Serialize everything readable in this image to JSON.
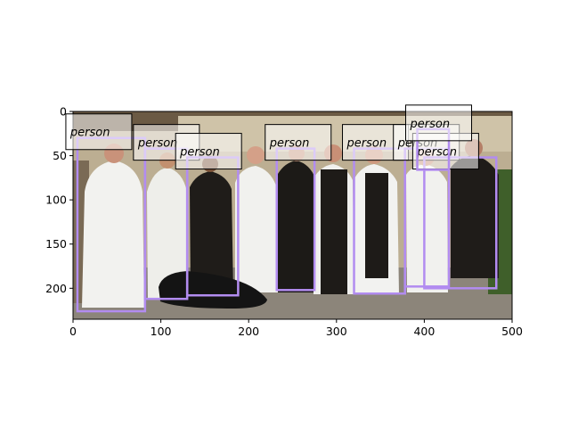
{
  "axes": {
    "x_ticks": [
      "0",
      "100",
      "200",
      "300",
      "400",
      "500"
    ],
    "x_tick_values": [
      0,
      100,
      200,
      300,
      400,
      500
    ],
    "y_ticks": [
      "0",
      "50",
      "100",
      "150",
      "200"
    ],
    "y_tick_values": [
      0,
      50,
      100,
      150,
      200
    ],
    "xlim": [
      0,
      500
    ],
    "ylim": [
      235,
      0
    ]
  },
  "image": {
    "description_colors": {
      "wall": "#bfb39a",
      "roof": "#5a4a3a",
      "ground": "#8a8378",
      "foliage": "#3f5f2a",
      "white_habit": "#f4f4f2",
      "black_habit": "#1e1b18",
      "skin": "#c99578"
    }
  },
  "detections": {
    "box_color": "#b28cf0",
    "items": [
      {
        "label": "person",
        "x0": 5,
        "y0": 30,
        "x1": 82,
        "y1": 226
      },
      {
        "label": "person",
        "x0": 82,
        "y0": 42,
        "x1": 130,
        "y1": 212
      },
      {
        "label": "person",
        "x0": 130,
        "y0": 52,
        "x1": 188,
        "y1": 208
      },
      {
        "label": "person",
        "x0": 232,
        "y0": 42,
        "x1": 275,
        "y1": 202
      },
      {
        "label": "person",
        "x0": 320,
        "y0": 42,
        "x1": 378,
        "y1": 206
      },
      {
        "label": "person",
        "x0": 378,
        "y0": 42,
        "x1": 428,
        "y1": 198
      },
      {
        "label": "person",
        "x0": 400,
        "y0": 52,
        "x1": 482,
        "y1": 200
      },
      {
        "label": "person",
        "x0": 392,
        "y0": 20,
        "x1": 428,
        "y1": 66
      }
    ]
  }
}
